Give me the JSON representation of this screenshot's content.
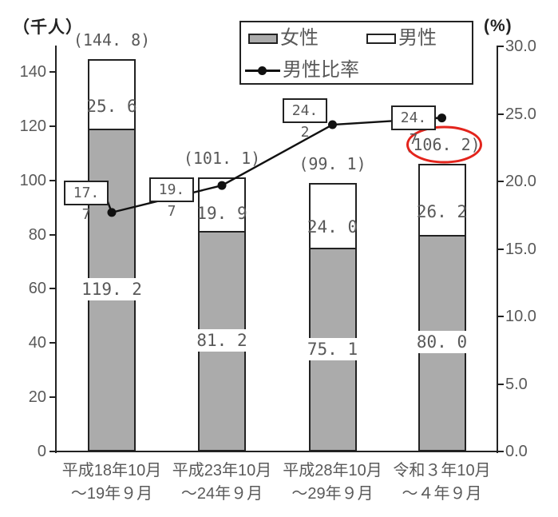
{
  "units": {
    "left": "（千人）",
    "right": "(%)"
  },
  "legend": {
    "female": "女性",
    "male": "男性",
    "ratio": "男性比率"
  },
  "colors": {
    "bar_female_fill": "#ababab",
    "bar_male_fill": "#ffffff",
    "bar_border": "#222222",
    "line_color": "#111111",
    "axis_color": "#222222",
    "text_gray": "#595959",
    "highlight_red": "#e3241c"
  },
  "chart_data": {
    "type": "bar",
    "subtype": "stacked-bars-with-line",
    "categories": [
      {
        "line1": "平成18年10月",
        "line2": "～19年９月"
      },
      {
        "line1": "平成23年10月",
        "line2": "～24年９月"
      },
      {
        "line1": "平成28年10月",
        "line2": "～29年９月"
      },
      {
        "line1": "令和３年10月",
        "line2": "～４年９月"
      }
    ],
    "series": [
      {
        "name": "女性",
        "type": "bar",
        "stack": "bottom",
        "axis": "left",
        "values": [
          119.2,
          81.2,
          75.1,
          80.0
        ],
        "labels": [
          "119. 2",
          "81. 2",
          "75. 1",
          "80. 0"
        ]
      },
      {
        "name": "男性",
        "type": "bar",
        "stack": "top",
        "axis": "left",
        "values": [
          25.6,
          19.9,
          24.0,
          26.2
        ],
        "labels": [
          "25. 6",
          "19. 9",
          "24. 0",
          "26. 2"
        ]
      },
      {
        "name": "男性比率",
        "type": "line",
        "axis": "right",
        "values": [
          17.7,
          19.7,
          24.2,
          24.7
        ],
        "labels": [
          "17. 7",
          "19. 7",
          "24. 2",
          "24. 7"
        ]
      }
    ],
    "totals": {
      "values": [
        144.8,
        101.1,
        99.1,
        106.2
      ],
      "labels": [
        "(144. 8)",
        "(101. 1)",
        "(99. 1)",
        "(106. 2)"
      ],
      "circled_index": 3
    },
    "left_axis": {
      "unit": "（千人）",
      "ticks": [
        0,
        20,
        40,
        60,
        80,
        100,
        120,
        140
      ],
      "range": [
        0,
        150
      ],
      "grid": false
    },
    "right_axis": {
      "unit": "(%)",
      "ticks": [
        "0.0",
        "5.0",
        "10.0",
        "15.0",
        "20.0",
        "25.0",
        "30.0"
      ],
      "range": [
        0,
        30
      ],
      "grid": false
    },
    "legend_position": "top"
  }
}
